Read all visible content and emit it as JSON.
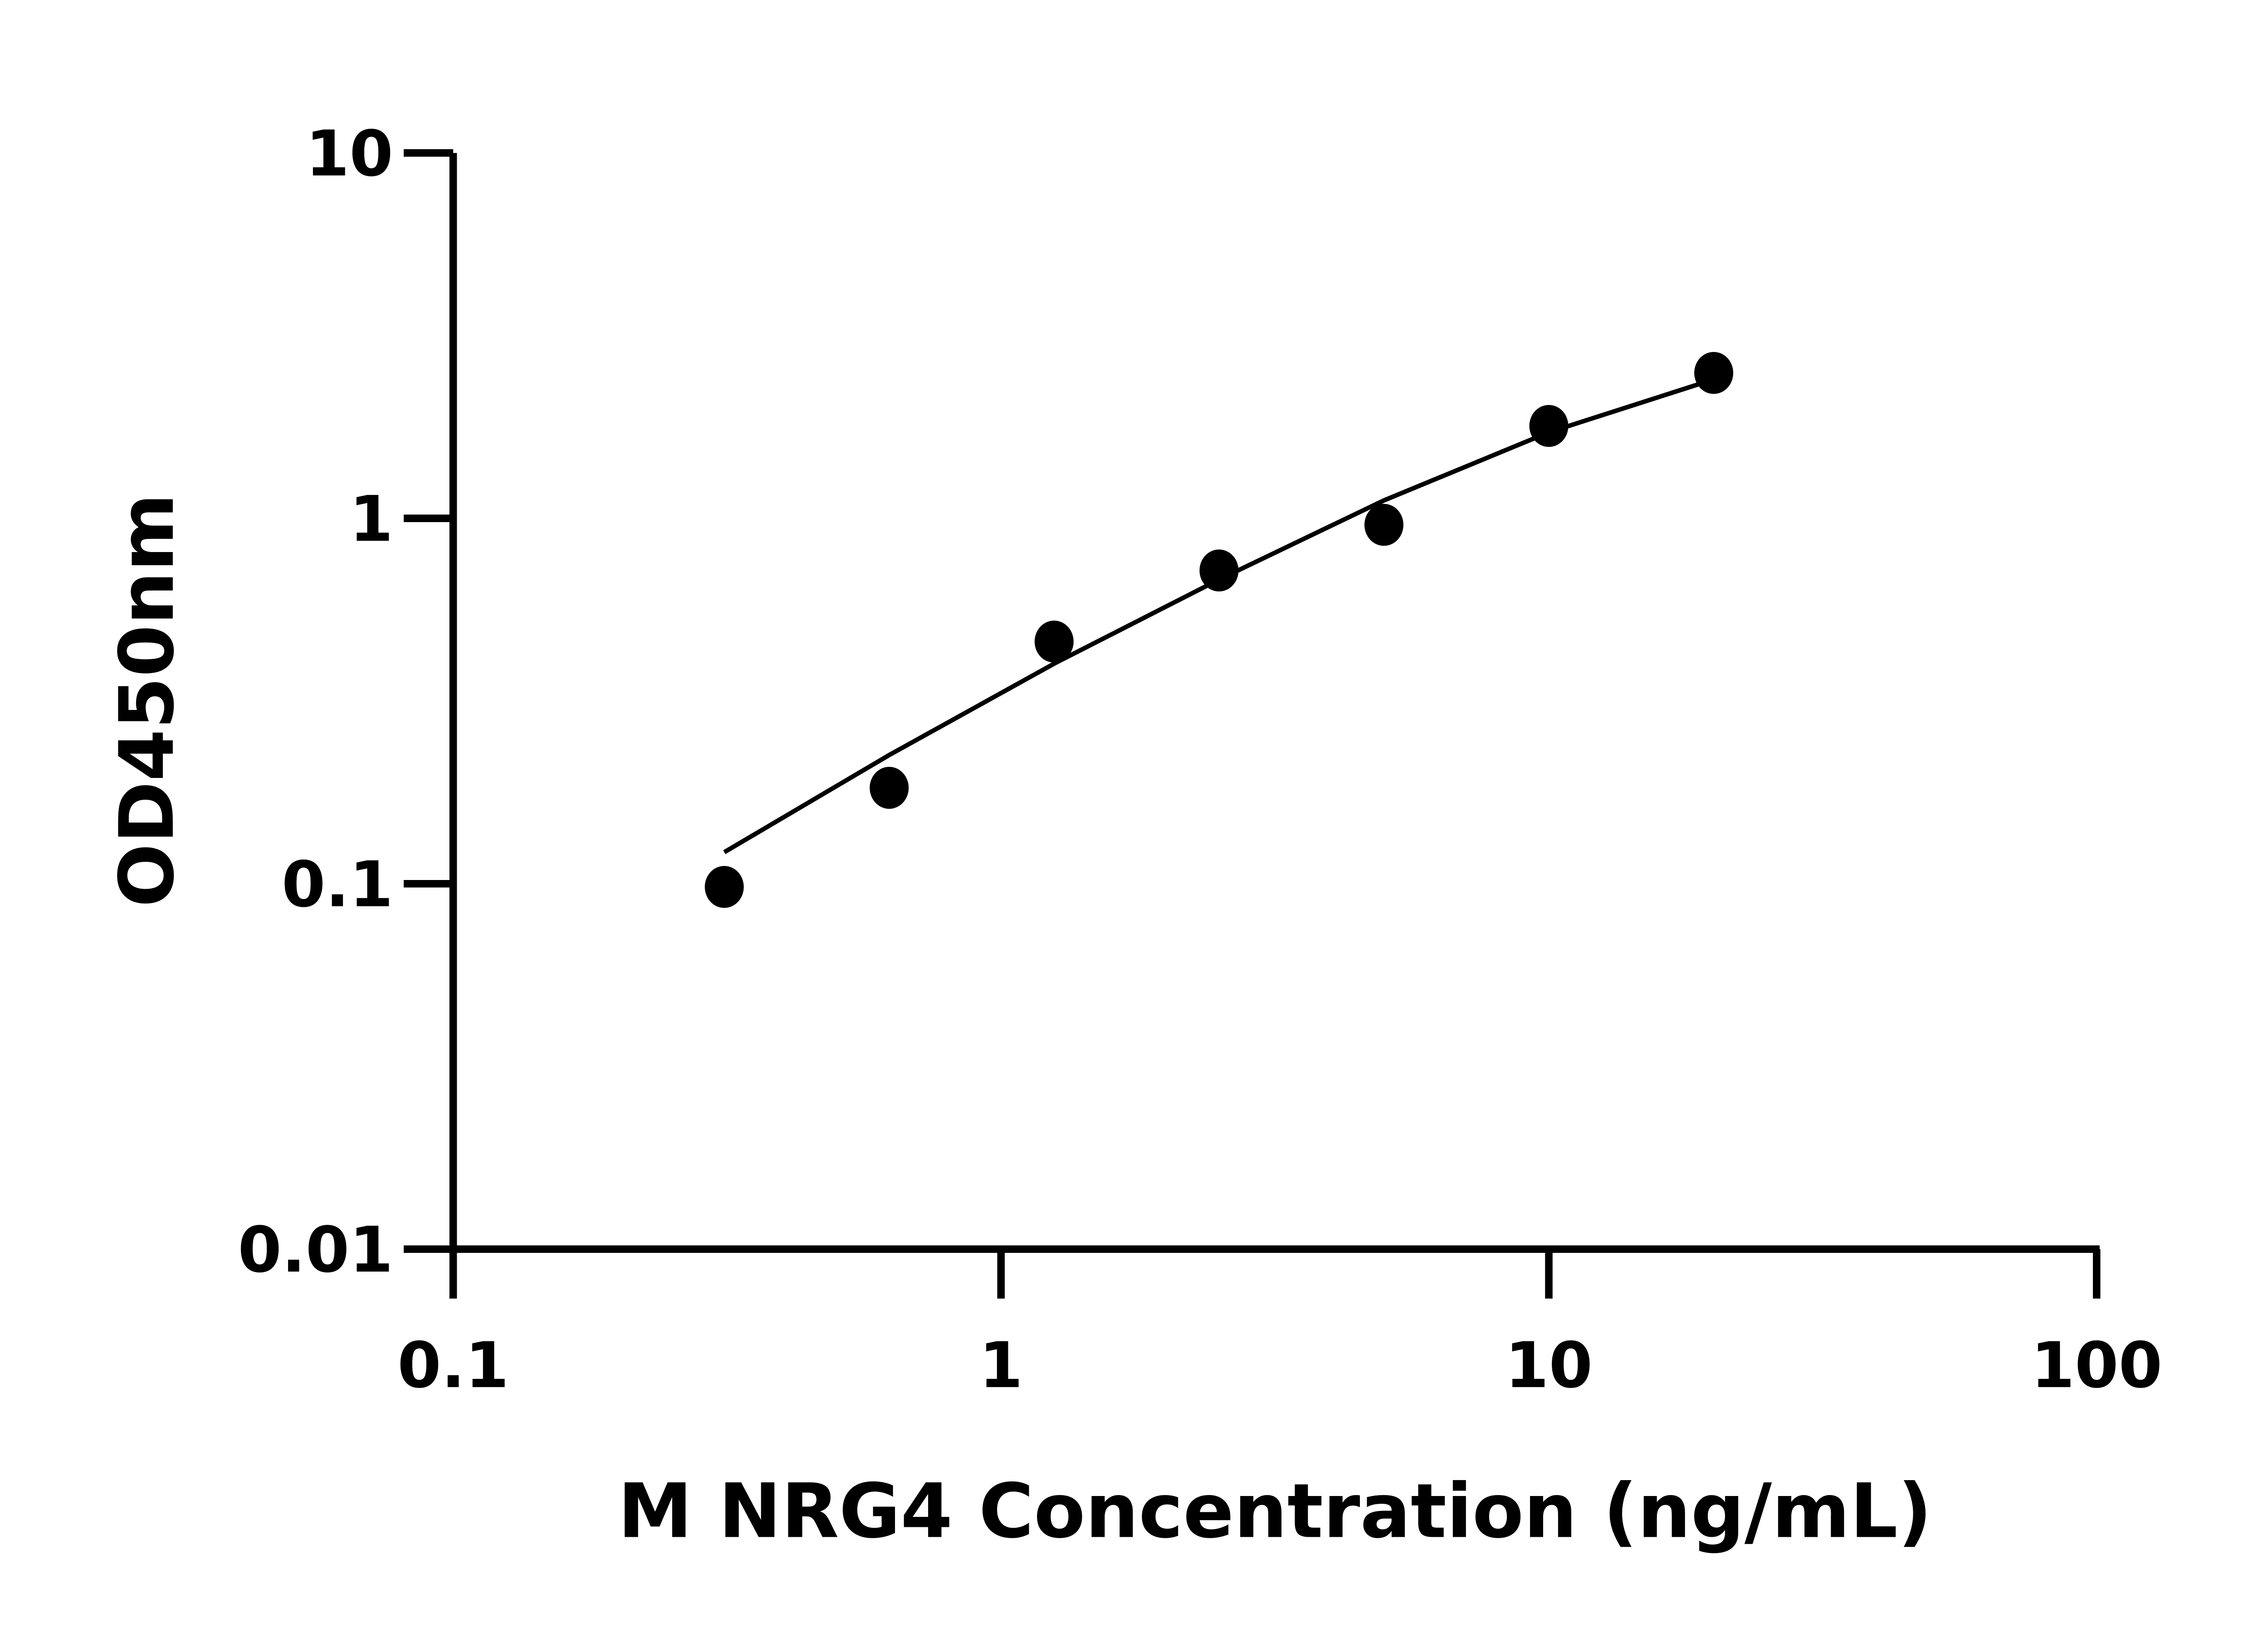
{
  "chart_data": {
    "type": "scatter",
    "title": "",
    "xlabel": "M NRG4 Concentration (ng/mL)",
    "ylabel": "OD450nm",
    "xscale": "log",
    "yscale": "log",
    "xlim": [
      0.1,
      100
    ],
    "ylim": [
      0.01,
      10
    ],
    "xticks": [
      "0.1",
      "1",
      "10",
      "100"
    ],
    "yticks": [
      "0.01",
      "0.1",
      "1",
      "10"
    ],
    "grid": false,
    "legend": "none",
    "color": "#000000",
    "series": [
      {
        "type": "scatter",
        "x": [
          0.3125,
          0.625,
          1.25,
          2.5,
          5,
          10,
          20
        ],
        "y": [
          0.098,
          0.183,
          0.46,
          0.72,
          0.96,
          1.79,
          2.5
        ]
      },
      {
        "type": "line",
        "x": [
          0.3125,
          0.625,
          1.25,
          2.5,
          5,
          10,
          20
        ],
        "y": [
          0.122,
          0.225,
          0.4,
          0.68,
          1.12,
          1.72,
          2.4
        ]
      }
    ]
  }
}
